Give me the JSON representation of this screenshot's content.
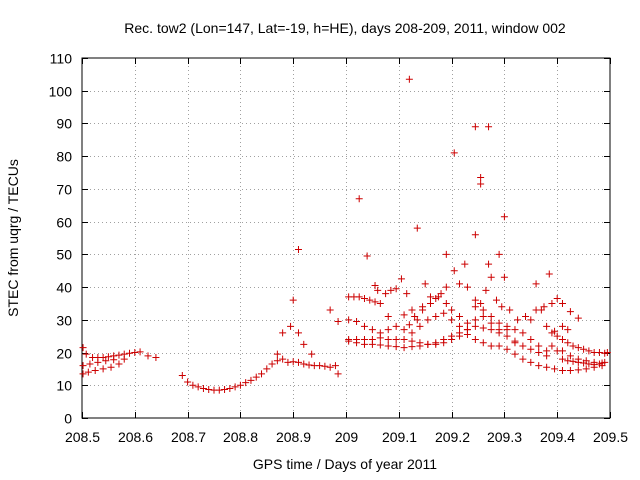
{
  "chart_data": {
    "type": "scatter",
    "title": "Rec. tow2 (Lon=147, Lat=-19, h=HE), days 208-209, 2011, window 002",
    "xlabel": "GPS time / Days of year 2011",
    "ylabel": "STEC from uqrg / TECUs",
    "xlim": [
      208.5,
      209.5
    ],
    "ylim": [
      0,
      110
    ],
    "xticks": [
      208.5,
      208.6,
      208.7,
      208.8,
      208.9,
      209,
      209.1,
      209.2,
      209.3,
      209.4,
      209.5
    ],
    "xtick_labels": [
      "208.5",
      "208.6",
      "208.7",
      "208.8",
      "208.9",
      "209",
      "209.1",
      "209.2",
      "209.3",
      "209.4",
      "209.5"
    ],
    "yticks": [
      0,
      10,
      20,
      30,
      40,
      50,
      60,
      70,
      80,
      90,
      100,
      110
    ],
    "ytick_labels": [
      "0",
      "10",
      "20",
      "30",
      "40",
      "50",
      "60",
      "70",
      "80",
      "90",
      "100",
      "110"
    ],
    "marker_color": "#cc0000",
    "series": [
      {
        "name": "STEC",
        "points": [
          [
            208.502,
            21.5
          ],
          [
            208.508,
            19.5
          ],
          [
            208.52,
            18.5
          ],
          [
            208.53,
            18.5
          ],
          [
            208.54,
            18.5
          ],
          [
            208.55,
            18.7
          ],
          [
            208.56,
            19.0
          ],
          [
            208.57,
            19.2
          ],
          [
            208.58,
            19.5
          ],
          [
            208.59,
            19.8
          ],
          [
            208.6,
            20.0
          ],
          [
            208.61,
            20.2
          ],
          [
            208.625,
            19.0
          ],
          [
            208.64,
            18.5
          ],
          [
            208.502,
            16.0
          ],
          [
            208.515,
            16.5
          ],
          [
            208.53,
            17.0
          ],
          [
            208.545,
            17.5
          ],
          [
            208.56,
            17.8
          ],
          [
            208.502,
            13.5
          ],
          [
            208.512,
            14.0
          ],
          [
            208.525,
            14.5
          ],
          [
            208.54,
            15.0
          ],
          [
            208.555,
            15.5
          ],
          [
            208.57,
            16.5
          ],
          [
            208.58,
            18.0
          ],
          [
            208.69,
            13.0
          ],
          [
            208.7,
            11.0
          ],
          [
            208.71,
            10.0
          ],
          [
            208.72,
            9.5
          ],
          [
            208.73,
            9.0
          ],
          [
            208.74,
            8.7
          ],
          [
            208.75,
            8.5
          ],
          [
            208.76,
            8.5
          ],
          [
            208.77,
            8.7
          ],
          [
            208.78,
            9.0
          ],
          [
            208.79,
            9.5
          ],
          [
            208.8,
            10.0
          ],
          [
            208.81,
            10.8
          ],
          [
            208.82,
            11.5
          ],
          [
            208.83,
            12.5
          ],
          [
            208.84,
            13.5
          ],
          [
            208.85,
            15.0
          ],
          [
            208.86,
            16.5
          ],
          [
            208.87,
            17.5
          ],
          [
            208.88,
            18.0
          ],
          [
            208.87,
            19.5
          ],
          [
            208.88,
            26.0
          ],
          [
            208.895,
            28.0
          ],
          [
            208.9,
            36.0
          ],
          [
            208.91,
            26.0
          ],
          [
            208.92,
            22.5
          ],
          [
            208.935,
            19.5
          ],
          [
            208.91,
            51.5
          ],
          [
            208.97,
            33.0
          ],
          [
            208.985,
            29.5
          ],
          [
            208.89,
            17.0
          ],
          [
            208.9,
            17.2
          ],
          [
            208.91,
            17.0
          ],
          [
            208.92,
            16.5
          ],
          [
            208.93,
            16.2
          ],
          [
            208.94,
            16.0
          ],
          [
            208.95,
            16.0
          ],
          [
            208.96,
            15.8
          ],
          [
            208.97,
            15.5
          ],
          [
            208.98,
            16.0
          ],
          [
            208.985,
            13.5
          ],
          [
            209.005,
            37.0
          ],
          [
            209.015,
            37.0
          ],
          [
            209.025,
            37.0
          ],
          [
            209.035,
            36.5
          ],
          [
            209.045,
            36.0
          ],
          [
            209.055,
            35.5
          ],
          [
            209.065,
            35.0
          ],
          [
            209.075,
            38.0
          ],
          [
            209.085,
            39.0
          ],
          [
            209.095,
            39.5
          ],
          [
            209.105,
            42.5
          ],
          [
            209.115,
            38.0
          ],
          [
            209.125,
            33.0
          ],
          [
            209.135,
            30.0
          ],
          [
            209.145,
            33.0
          ],
          [
            209.025,
            67.0
          ],
          [
            209.04,
            49.5
          ],
          [
            209.055,
            40.5
          ],
          [
            209.06,
            39.0
          ],
          [
            209.08,
            31.0
          ],
          [
            209.12,
            103.5
          ],
          [
            209.135,
            58.0
          ],
          [
            209.205,
            81.0
          ],
          [
            209.19,
            50.0
          ],
          [
            209.225,
            47.0
          ],
          [
            209.245,
            56.0
          ],
          [
            209.245,
            89.0
          ],
          [
            209.255,
            73.5
          ],
          [
            209.255,
            71.5
          ],
          [
            209.27,
            89.0
          ],
          [
            209.27,
            47.0
          ],
          [
            209.29,
            50.0
          ],
          [
            209.3,
            61.5
          ],
          [
            209.3,
            43.0
          ],
          [
            209.385,
            44.0
          ],
          [
            209.005,
            30.0
          ],
          [
            209.02,
            29.5
          ],
          [
            209.035,
            28.0
          ],
          [
            209.05,
            27.0
          ],
          [
            209.065,
            26.0
          ],
          [
            209.08,
            27.0
          ],
          [
            209.095,
            28.0
          ],
          [
            209.11,
            27.0
          ],
          [
            209.125,
            26.0
          ],
          [
            209.14,
            28.0
          ],
          [
            209.155,
            30.0
          ],
          [
            209.17,
            31.0
          ],
          [
            209.185,
            32.0
          ],
          [
            209.2,
            30.0
          ],
          [
            209.215,
            28.0
          ],
          [
            209.23,
            27.0
          ],
          [
            209.245,
            30.0
          ],
          [
            209.26,
            33.0
          ],
          [
            209.275,
            31.0
          ],
          [
            209.29,
            29.0
          ],
          [
            209.305,
            28.0
          ],
          [
            209.32,
            27.0
          ],
          [
            209.335,
            26.0
          ],
          [
            209.35,
            24.0
          ],
          [
            209.365,
            22.0
          ],
          [
            209.38,
            20.5
          ],
          [
            209.005,
            24.0
          ],
          [
            209.02,
            24.0
          ],
          [
            209.035,
            24.0
          ],
          [
            209.05,
            24.0
          ],
          [
            209.065,
            24.5
          ],
          [
            209.08,
            24.0
          ],
          [
            209.095,
            24.0
          ],
          [
            209.11,
            24.0
          ],
          [
            209.125,
            23.5
          ],
          [
            209.14,
            23.0
          ],
          [
            209.155,
            22.5
          ],
          [
            209.17,
            22.5
          ],
          [
            209.185,
            23.0
          ],
          [
            209.2,
            24.0
          ],
          [
            209.215,
            25.0
          ],
          [
            209.23,
            25.5
          ],
          [
            209.245,
            24.0
          ],
          [
            209.26,
            23.0
          ],
          [
            209.275,
            22.0
          ],
          [
            209.29,
            22.0
          ],
          [
            209.305,
            21.0
          ],
          [
            209.32,
            19.5
          ],
          [
            209.335,
            18.0
          ],
          [
            209.35,
            17.0
          ],
          [
            209.365,
            16.0
          ],
          [
            209.38,
            15.5
          ],
          [
            209.395,
            15.0
          ],
          [
            209.41,
            14.5
          ],
          [
            209.425,
            14.5
          ],
          [
            209.44,
            14.7
          ],
          [
            209.455,
            15.0
          ],
          [
            209.47,
            15.5
          ],
          [
            209.485,
            16.0
          ],
          [
            209.005,
            23.5
          ],
          [
            209.02,
            23.0
          ],
          [
            209.035,
            22.5
          ],
          [
            209.05,
            22.5
          ],
          [
            209.065,
            22.3
          ],
          [
            209.08,
            22.0
          ],
          [
            209.095,
            21.8
          ],
          [
            209.11,
            21.5
          ],
          [
            209.125,
            21.8
          ],
          [
            209.14,
            22.0
          ],
          [
            209.155,
            22.5
          ],
          [
            209.17,
            23.0
          ],
          [
            209.185,
            24.0
          ],
          [
            209.2,
            25.0
          ],
          [
            209.215,
            26.0
          ],
          [
            209.23,
            27.0
          ],
          [
            209.245,
            28.0
          ],
          [
            209.26,
            27.5
          ],
          [
            209.275,
            27.0
          ],
          [
            209.29,
            26.0
          ],
          [
            209.305,
            25.0
          ],
          [
            209.32,
            23.5
          ],
          [
            209.335,
            22.0
          ],
          [
            209.35,
            21.0
          ],
          [
            209.365,
            20.0
          ],
          [
            209.38,
            19.0
          ],
          [
            209.15,
            41.0
          ],
          [
            209.16,
            37.0
          ],
          [
            209.17,
            36.5
          ],
          [
            209.18,
            38.0
          ],
          [
            209.19,
            40.0
          ],
          [
            209.205,
            45.0
          ],
          [
            209.215,
            41.0
          ],
          [
            209.23,
            40.0
          ],
          [
            209.245,
            36.0
          ],
          [
            209.255,
            35.0
          ],
          [
            209.265,
            39.0
          ],
          [
            209.275,
            43.0
          ],
          [
            209.285,
            36.0
          ],
          [
            209.295,
            34.0
          ],
          [
            209.31,
            33.0
          ],
          [
            209.325,
            30.0
          ],
          [
            209.34,
            31.0
          ],
          [
            209.19,
            35.0
          ],
          [
            209.2,
            33.0
          ],
          [
            209.215,
            31.0
          ],
          [
            209.23,
            29.0
          ],
          [
            209.245,
            34.0
          ],
          [
            209.26,
            31.0
          ],
          [
            209.275,
            29.0
          ],
          [
            209.29,
            27.0
          ],
          [
            209.305,
            27.0
          ],
          [
            209.32,
            23.0
          ],
          [
            209.36,
            41.0
          ],
          [
            209.37,
            33.0
          ],
          [
            209.38,
            28.0
          ],
          [
            209.39,
            26.0
          ],
          [
            209.4,
            25.0
          ],
          [
            209.41,
            24.0
          ],
          [
            209.42,
            23.0
          ],
          [
            209.43,
            22.0
          ],
          [
            209.44,
            21.5
          ],
          [
            209.45,
            21.0
          ],
          [
            209.46,
            20.5
          ],
          [
            209.47,
            20.0
          ],
          [
            209.48,
            20.0
          ],
          [
            209.49,
            19.8
          ],
          [
            209.4,
            36.5
          ],
          [
            209.41,
            35.0
          ],
          [
            209.425,
            32.5
          ],
          [
            209.44,
            30.5
          ],
          [
            209.41,
            28.0
          ],
          [
            209.42,
            27.0
          ],
          [
            209.35,
            30.0
          ],
          [
            209.36,
            33.0
          ],
          [
            209.375,
            34.0
          ],
          [
            209.39,
            35.0
          ],
          [
            209.395,
            26.5
          ],
          [
            209.4,
            20.5
          ],
          [
            209.41,
            18.0
          ],
          [
            209.42,
            17.5
          ],
          [
            209.43,
            17.3
          ],
          [
            209.44,
            17.0
          ],
          [
            209.45,
            16.8
          ],
          [
            209.46,
            16.5
          ],
          [
            209.47,
            16.3
          ],
          [
            209.48,
            16.5
          ],
          [
            209.49,
            17.0
          ],
          [
            209.39,
            22.0
          ],
          [
            209.41,
            20.5
          ],
          [
            209.425,
            19.0
          ],
          [
            209.44,
            18.0
          ],
          [
            209.455,
            17.5
          ],
          [
            209.47,
            17.0
          ],
          [
            209.485,
            16.8
          ],
          [
            209.495,
            20.0
          ],
          [
            209.12,
            28.5
          ],
          [
            209.13,
            31.0
          ],
          [
            209.145,
            34.0
          ],
          [
            209.16,
            35.0
          ],
          [
            209.175,
            37.0
          ],
          [
            209.11,
            31.5
          ]
        ]
      }
    ]
  }
}
